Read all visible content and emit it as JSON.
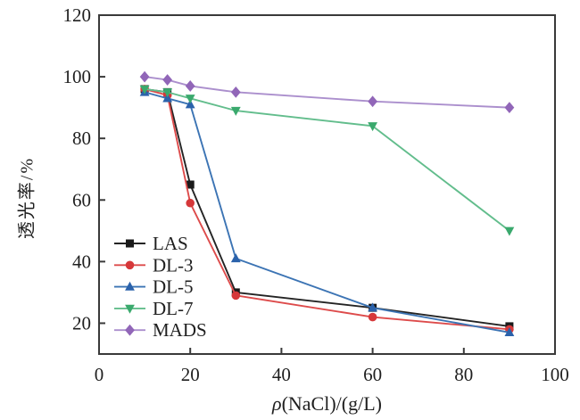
{
  "chart_data": {
    "type": "line",
    "title": "",
    "xlabel": "ρ(NaCl)/(g/L)",
    "xlabel_prefix": "ρ",
    "xlabel_rest": "(NaCl)/(g/L)",
    "ylabel": "透光率/%",
    "x": [
      10,
      15,
      20,
      30,
      60,
      90
    ],
    "xlim": [
      0,
      100
    ],
    "ylim": [
      10,
      120
    ],
    "x_ticks": [
      0,
      20,
      40,
      60,
      80,
      100
    ],
    "y_ticks": [
      20,
      40,
      60,
      80,
      100,
      120
    ],
    "grid": false,
    "legend_position": "inside-lower-left",
    "series": [
      {
        "name": "LAS",
        "marker": "square",
        "color": "#1a1a1a",
        "line_color": "#242424",
        "values": [
          96,
          95,
          65,
          30,
          25,
          19
        ]
      },
      {
        "name": "DL-3",
        "marker": "circle",
        "color": "#d6383a",
        "line_color": "#dd4b4b",
        "values": [
          96,
          94,
          59,
          29,
          22,
          18
        ]
      },
      {
        "name": "DL-5",
        "marker": "triangle-up",
        "color": "#2b62ab",
        "line_color": "#3c74b4",
        "values": [
          95,
          93,
          91,
          41,
          25,
          17
        ]
      },
      {
        "name": "DL-7",
        "marker": "triangle-down",
        "color": "#3aa96d",
        "line_color": "#62bd8c",
        "values": [
          96,
          95,
          93,
          89,
          84,
          50
        ]
      },
      {
        "name": "MADS",
        "marker": "diamond",
        "color": "#9166b8",
        "line_color": "#ab8fcd",
        "values": [
          100,
          99,
          97,
          95,
          92,
          90
        ]
      }
    ]
  },
  "colors": {
    "background": "#ffffff",
    "axis": "#3a3a3a",
    "tick_text": "#1f1f1f"
  }
}
